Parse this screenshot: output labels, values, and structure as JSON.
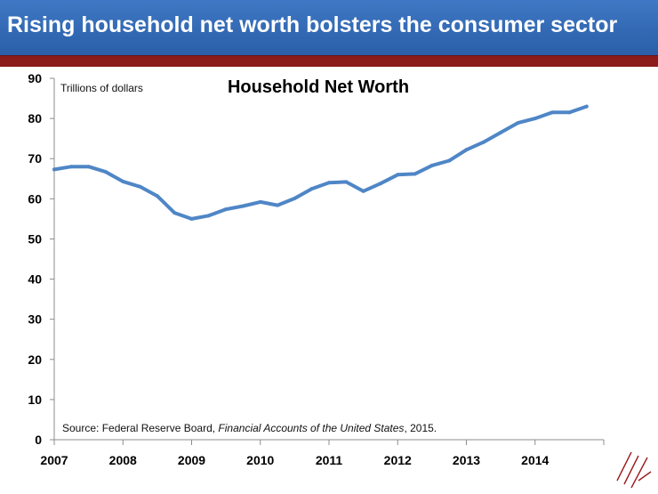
{
  "header": {
    "title": "Rising household net worth bolsters the consumer sector"
  },
  "colors": {
    "banner": "#2f67b3",
    "rule": "#8b1a1a",
    "line": "#4f86c6",
    "logo": "#9b1c1c"
  },
  "chart_data": {
    "type": "line",
    "title": "Household Net Worth",
    "unit_label": "Trillions of dollars",
    "xlabel": "",
    "ylabel": "",
    "ylim": [
      0,
      90
    ],
    "yticks": [
      0,
      10,
      20,
      30,
      40,
      50,
      60,
      70,
      80,
      90
    ],
    "xlim": [
      2007.0,
      2015.0
    ],
    "xticks": [
      "2007",
      "2008",
      "2009",
      "2010",
      "2011",
      "2012",
      "2013",
      "2014"
    ],
    "grid": false,
    "source": {
      "prefix": "Source: Federal Reserve Board, ",
      "italic": "Financial Accounts of the United States",
      "suffix": ", 2015."
    },
    "series": [
      {
        "x": [
          2007.0,
          2007.25,
          2007.5,
          2007.75,
          2008.0,
          2008.25,
          2008.5,
          2008.75,
          2009.0,
          2009.25,
          2009.5,
          2009.75,
          2010.0,
          2010.25,
          2010.5,
          2010.75,
          2011.0,
          2011.25,
          2011.5,
          2011.75,
          2012.0,
          2012.25,
          2012.5,
          2012.75,
          2013.0,
          2013.25,
          2013.5,
          2013.75,
          2014.0,
          2014.25,
          2014.5,
          2014.75
        ],
        "values": [
          67.3,
          68.0,
          68.0,
          66.7,
          64.3,
          63.0,
          60.7,
          56.5,
          55.0,
          55.8,
          57.4,
          58.2,
          59.2,
          58.4,
          60.1,
          62.5,
          64.0,
          64.2,
          61.9,
          63.8,
          66.0,
          66.2,
          68.3,
          69.5,
          72.2,
          74.1,
          76.5,
          78.9,
          80.0,
          81.5,
          81.5,
          83.0
        ]
      }
    ]
  }
}
